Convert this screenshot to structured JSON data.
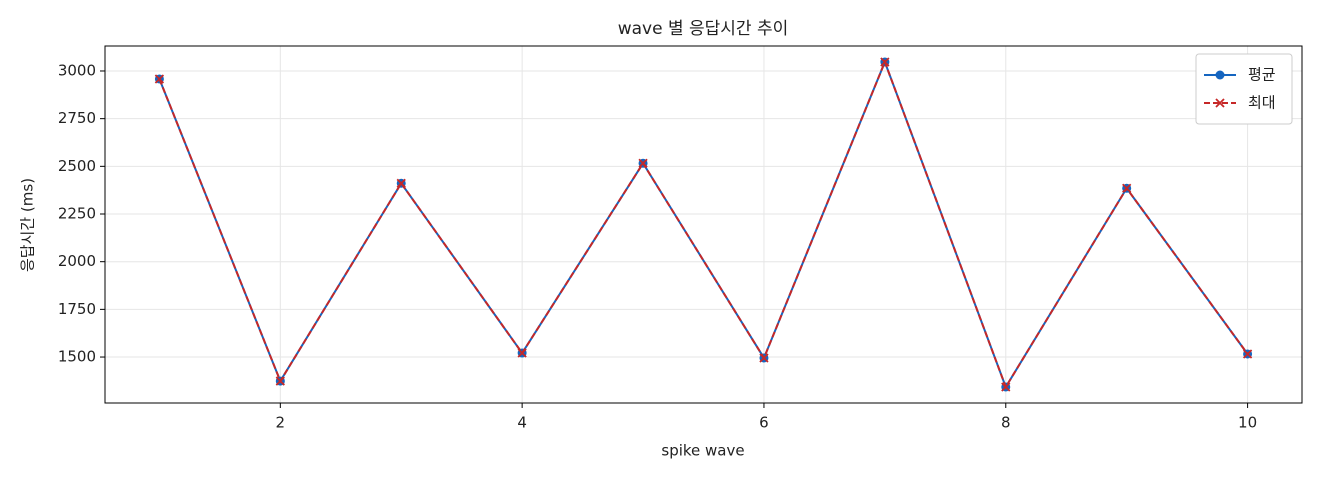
{
  "chart_data": {
    "type": "line",
    "title": "wave 별 응답시간 추이",
    "x_label": "spike wave",
    "y_label": "응답시간 (ms)",
    "x": [
      1,
      2,
      3,
      4,
      5,
      6,
      7,
      8,
      9,
      10
    ],
    "series": [
      {
        "name": "평균",
        "color": "#1565c0",
        "marker": "circle",
        "dash": false,
        "values": [
          2958,
          1374,
          2411,
          1521,
          2516,
          1495,
          3047,
          1343,
          2385,
          1516
        ]
      },
      {
        "name": "최대",
        "color": "#c62828",
        "marker": "x",
        "dash": true,
        "values": [
          2958,
          1374,
          2411,
          1521,
          2516,
          1495,
          3047,
          1343,
          2385,
          1516
        ]
      }
    ],
    "xlim": [
      0.55,
      10.45
    ],
    "ylim": [
      1259,
      3131
    ],
    "xticks": [
      2,
      4,
      6,
      8,
      10
    ],
    "yticks": [
      1500,
      1750,
      2000,
      2250,
      2500,
      2750,
      3000
    ],
    "grid": true,
    "legend": "upper right"
  }
}
